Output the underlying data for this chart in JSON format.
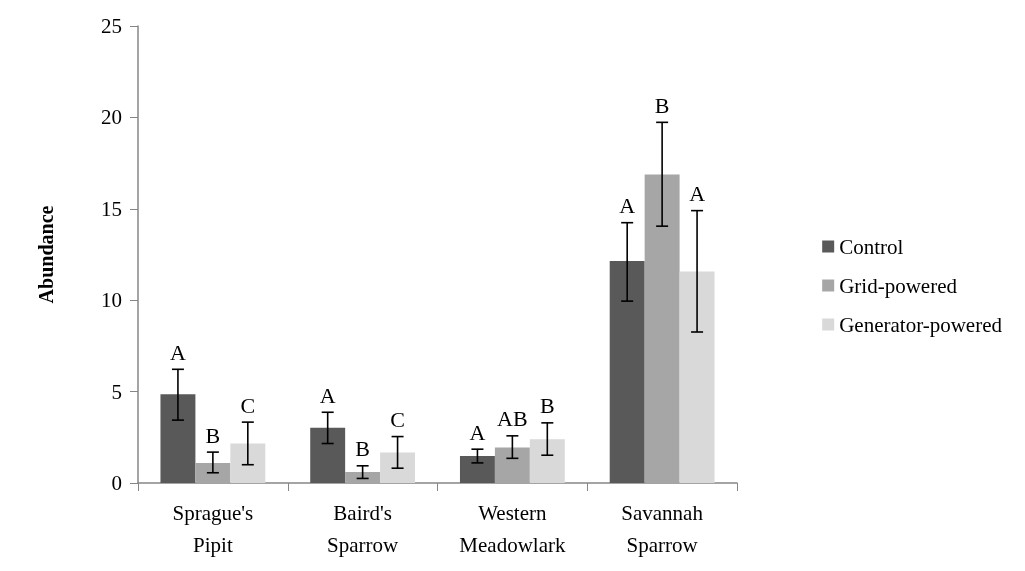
{
  "chart_data": {
    "type": "bar",
    "ylabel": "Abundance",
    "categories": [
      "Sprague's\nPipit",
      "Baird's\nSparrow",
      "Western\nMeadowlark",
      "Savannah\nSparrow"
    ],
    "series": [
      {
        "name": "Control",
        "color": "#595959",
        "values": [
          4.85,
          3.02,
          1.48,
          12.14
        ],
        "errors": [
          [
            3.44,
            6.22
          ],
          [
            2.16,
            3.87
          ],
          [
            1.1,
            1.85
          ],
          [
            9.95,
            14.24
          ]
        ],
        "value_labels": [
          "A",
          "A",
          "A",
          "A"
        ]
      },
      {
        "name": "Grid-powered",
        "color": "#a6a6a6",
        "values": [
          1.1,
          0.6,
          1.94,
          16.88
        ],
        "errors": [
          [
            0.56,
            1.69
          ],
          [
            0.25,
            0.94
          ],
          [
            1.35,
            2.58
          ],
          [
            14.05,
            19.73
          ]
        ],
        "value_labels": [
          "B",
          "B",
          "AB",
          "B"
        ]
      },
      {
        "name": "Generator-powered",
        "color": "#d9d9d9",
        "values": [
          2.16,
          1.67,
          2.4,
          11.57
        ],
        "errors": [
          [
            1.0,
            3.33
          ],
          [
            0.81,
            2.54
          ],
          [
            1.52,
            3.29
          ],
          [
            8.26,
            14.9
          ]
        ],
        "value_labels": [
          "C",
          "C",
          "B",
          "A"
        ]
      }
    ],
    "ylim": [
      0,
      25
    ],
    "yticks": [
      0,
      5,
      10,
      15,
      20,
      25
    ],
    "grid": false,
    "legend": "right"
  }
}
